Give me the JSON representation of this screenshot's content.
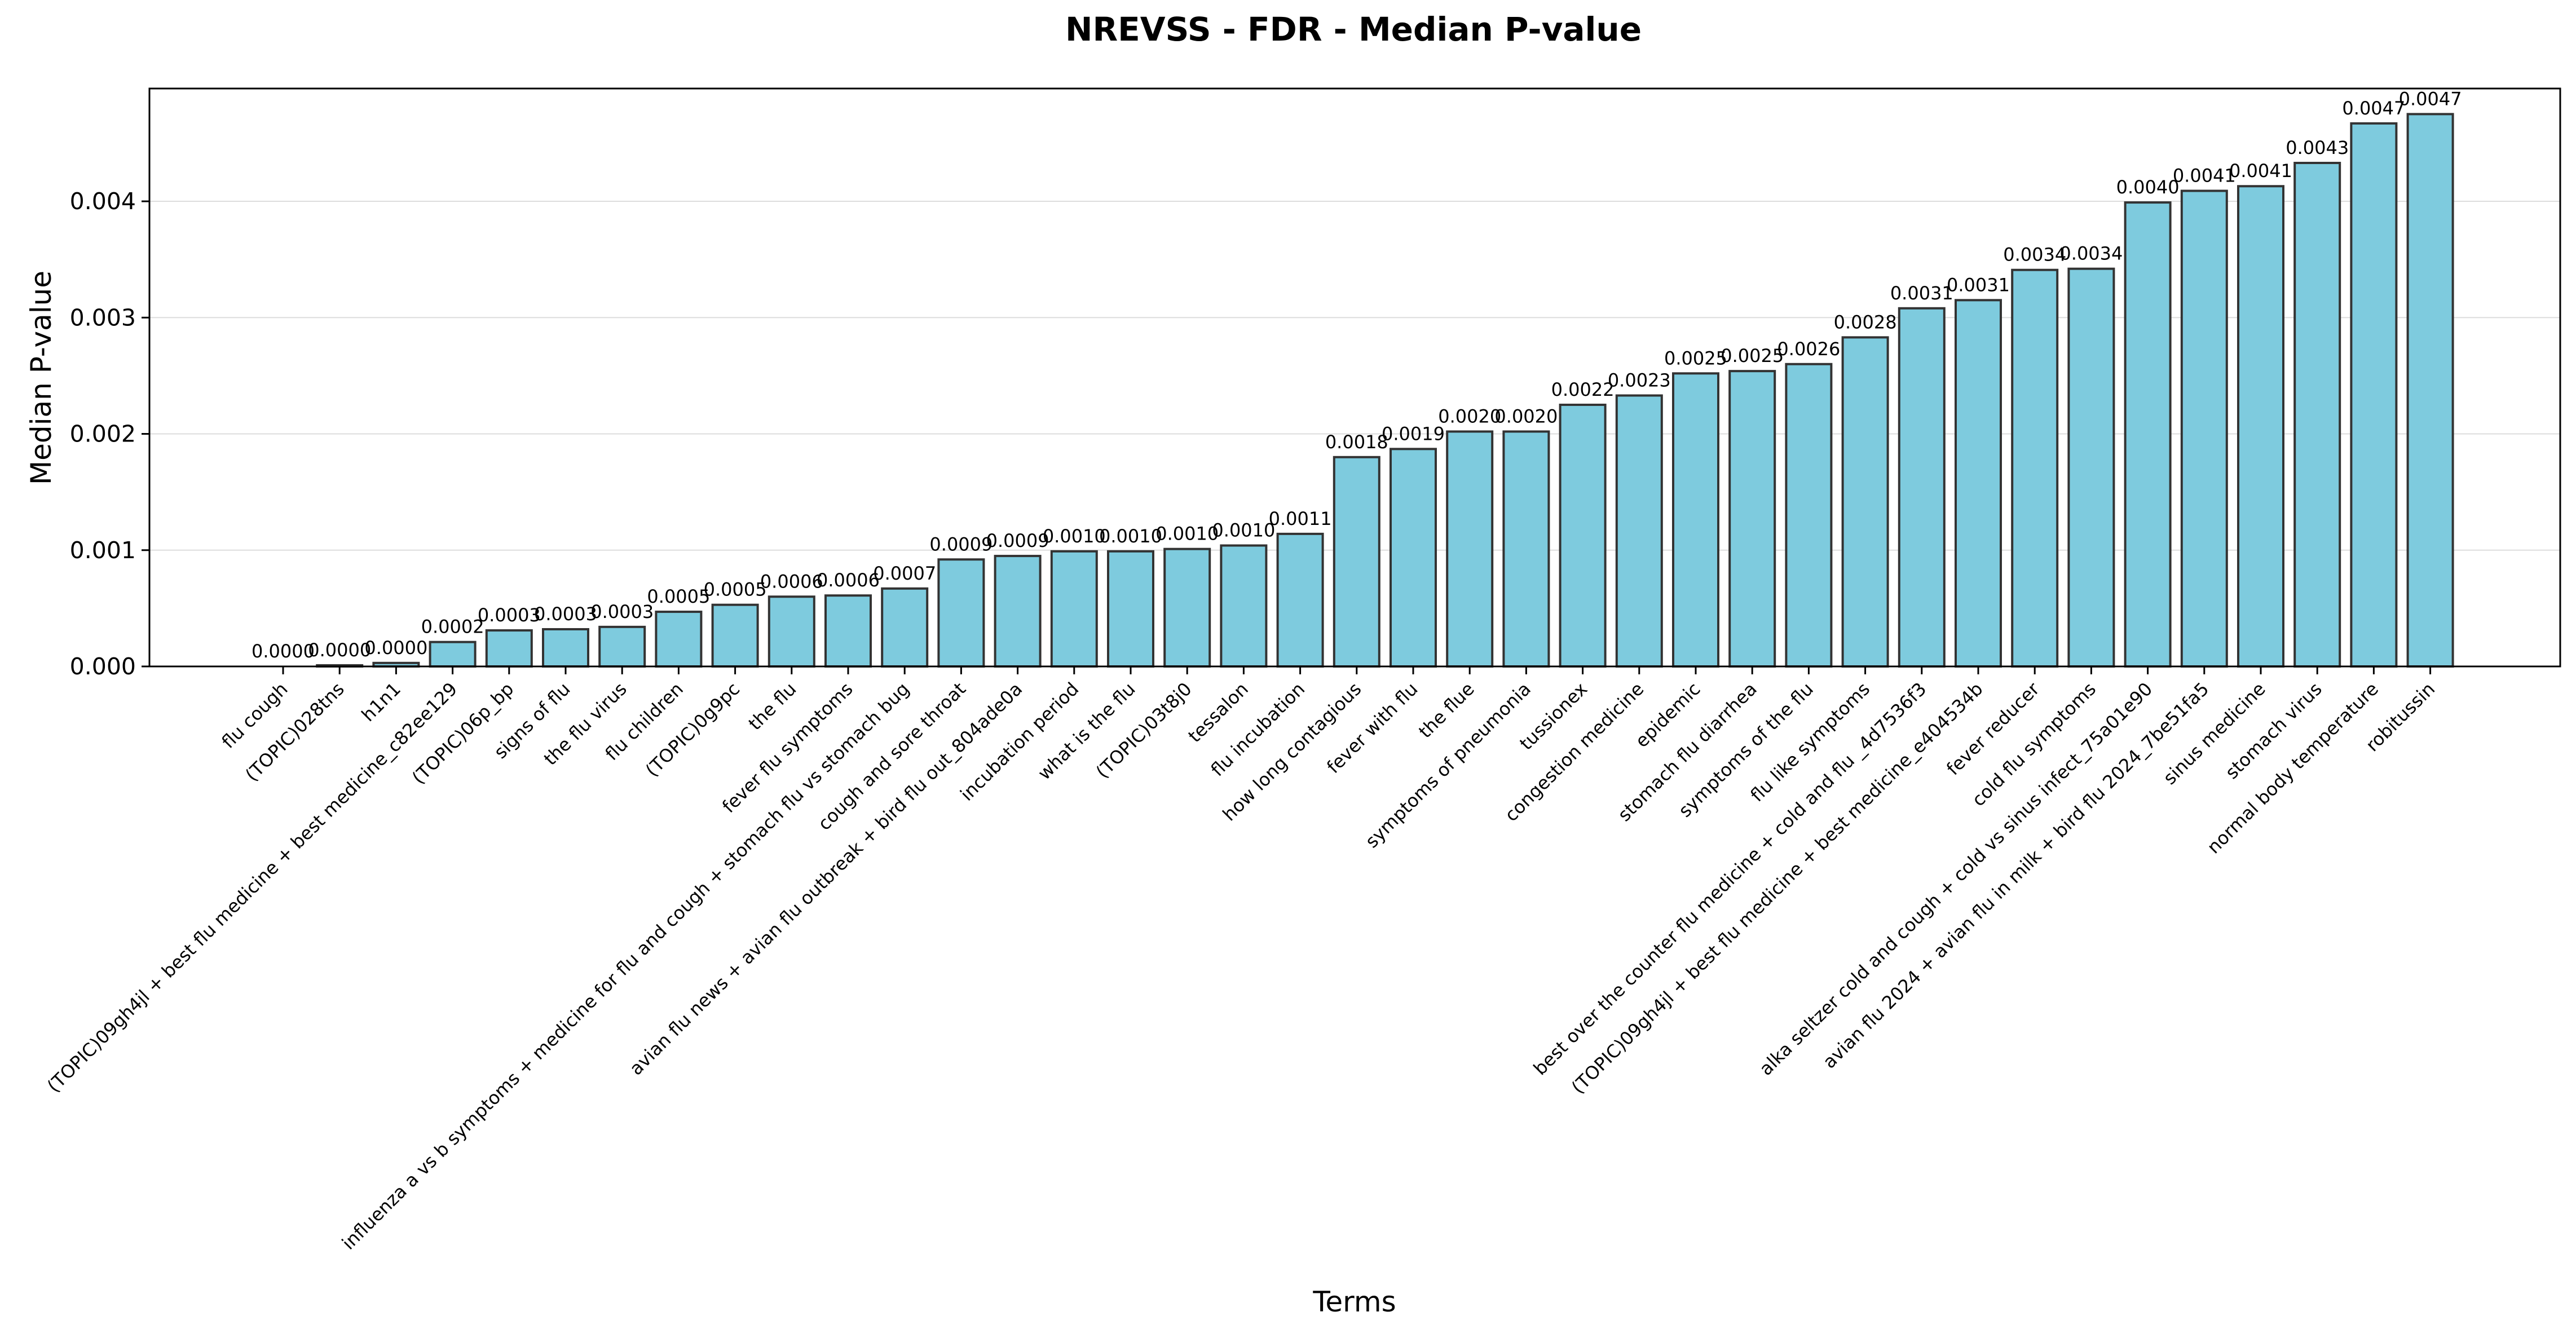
{
  "chart_data": {
    "type": "bar",
    "title": "NREVSS - FDR - Median P-value",
    "xlabel": "Terms",
    "ylabel": "Median P-value",
    "ylim": [
      0,
      0.00497
    ],
    "yticks": [
      0.0,
      0.001,
      0.002,
      0.003,
      0.004
    ],
    "ytick_labels": [
      "0.000",
      "0.001",
      "0.002",
      "0.003",
      "0.004"
    ],
    "grid": "y",
    "bar_color": "#7ecbde",
    "bar_edge_color": "#333333",
    "categories": [
      "flu cough",
      "(TOPIC)028tns",
      "h1n1",
      "(TOPIC)09gh4jl + best flu medicine + best medicine_c82ee129",
      "(TOPIC)06p_bp",
      "signs of flu",
      "the flu virus",
      "flu children",
      "(TOPIC)0g9pc",
      "the flu",
      "fever flu symptoms",
      "influenza a vs b symptoms + medicine for flu and cough + stomach flu vs stomach bug",
      "cough and sore throat",
      "avian flu news + avian flu outbreak + bird flu out_804ade0a",
      "incubation period",
      "what is the flu",
      "(TOPIC)03t8j0",
      "tessalon",
      "flu incubation",
      "how long contagious",
      "fever with flu",
      "the flue",
      "symptoms of pneumonia",
      "tussionex",
      "congestion medicine",
      "epidemic",
      "stomach flu diarrhea",
      "symptoms of the flu",
      "flu like symptoms",
      "best over the counter flu medicine + cold and flu _4d7536f3",
      "(TOPIC)09gh4jl + best flu medicine + best medicine_e404534b",
      "fever reducer",
      "cold flu symptoms",
      "alka seltzer cold and cough + cold vs sinus infect_75a01e90",
      "avian flu 2024 + avian flu in milk + bird flu 2024_7be51fa5",
      "sinus medicine",
      "stomach virus",
      "normal body temperature",
      "robitussin"
    ],
    "values": [
      0.0,
      1e-05,
      3e-05,
      0.00021,
      0.00031,
      0.00032,
      0.00034,
      0.00047,
      0.00053,
      0.0006,
      0.00061,
      0.00067,
      0.00092,
      0.00095,
      0.00099,
      0.00099,
      0.00101,
      0.00104,
      0.00114,
      0.0018,
      0.00187,
      0.00202,
      0.00202,
      0.00225,
      0.00233,
      0.00252,
      0.00254,
      0.0026,
      0.00283,
      0.00308,
      0.00315,
      0.00341,
      0.00342,
      0.00399,
      0.00409,
      0.00413,
      0.00433,
      0.00467,
      0.00475
    ],
    "data_labels": [
      "0.0000",
      "0.0000",
      "0.0000",
      "0.0002",
      "0.0003",
      "0.0003",
      "0.0003",
      "0.0005",
      "0.0005",
      "0.0006",
      "0.0006",
      "0.0007",
      "0.0009",
      "0.0009",
      "0.0010",
      "0.0010",
      "0.0010",
      "0.0010",
      "0.0011",
      "0.0018",
      "0.0019",
      "0.0020",
      "0.0020",
      "0.0022",
      "0.0023",
      "0.0025",
      "0.0025",
      "0.0026",
      "0.0028",
      "0.0031",
      "0.0031",
      "0.0034",
      "0.0034",
      "0.0040",
      "0.0041",
      "0.0041",
      "0.0043",
      "0.0047",
      "0.0047"
    ]
  }
}
